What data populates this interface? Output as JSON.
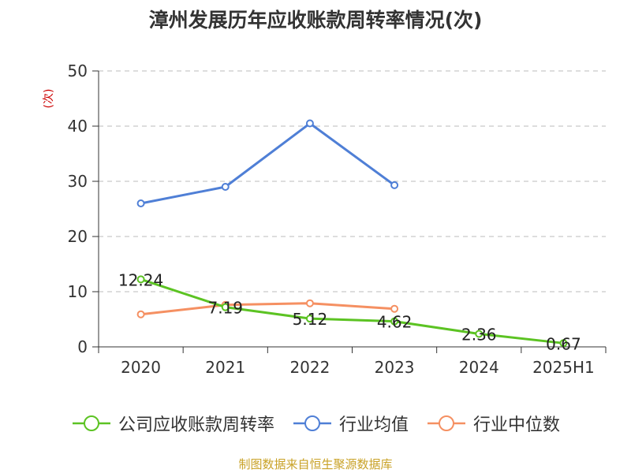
{
  "title": "漳州发展历年应收账款周转率情况(次)",
  "source": "制图数据来自恒生聚源数据库",
  "chart_data": {
    "type": "line",
    "title": "漳州发展历年应收账款周转率情况(次)",
    "xlabel": "",
    "ylabel": "(次)",
    "categories": [
      "2020",
      "2021",
      "2022",
      "2023",
      "2024",
      "2025H1"
    ],
    "ylim": [
      0,
      50
    ],
    "yticks": [
      0,
      10,
      20,
      30,
      40,
      50
    ],
    "grid": true,
    "legend_position": "bottom",
    "series": [
      {
        "name": "公司应收账款周转率",
        "color": "#5cc323",
        "values": [
          12.24,
          7.19,
          5.12,
          4.62,
          2.36,
          0.67
        ],
        "labels": [
          "12.24",
          "7.19",
          "5.12",
          "4.62",
          "2.36",
          "0.67"
        ]
      },
      {
        "name": "行业均值",
        "color": "#4f7fd6",
        "values": [
          26.0,
          29.0,
          40.5,
          29.3,
          null,
          null
        ]
      },
      {
        "name": "行业中位数",
        "color": "#f59062",
        "values": [
          5.9,
          7.6,
          7.9,
          6.9,
          null,
          null
        ]
      }
    ]
  }
}
